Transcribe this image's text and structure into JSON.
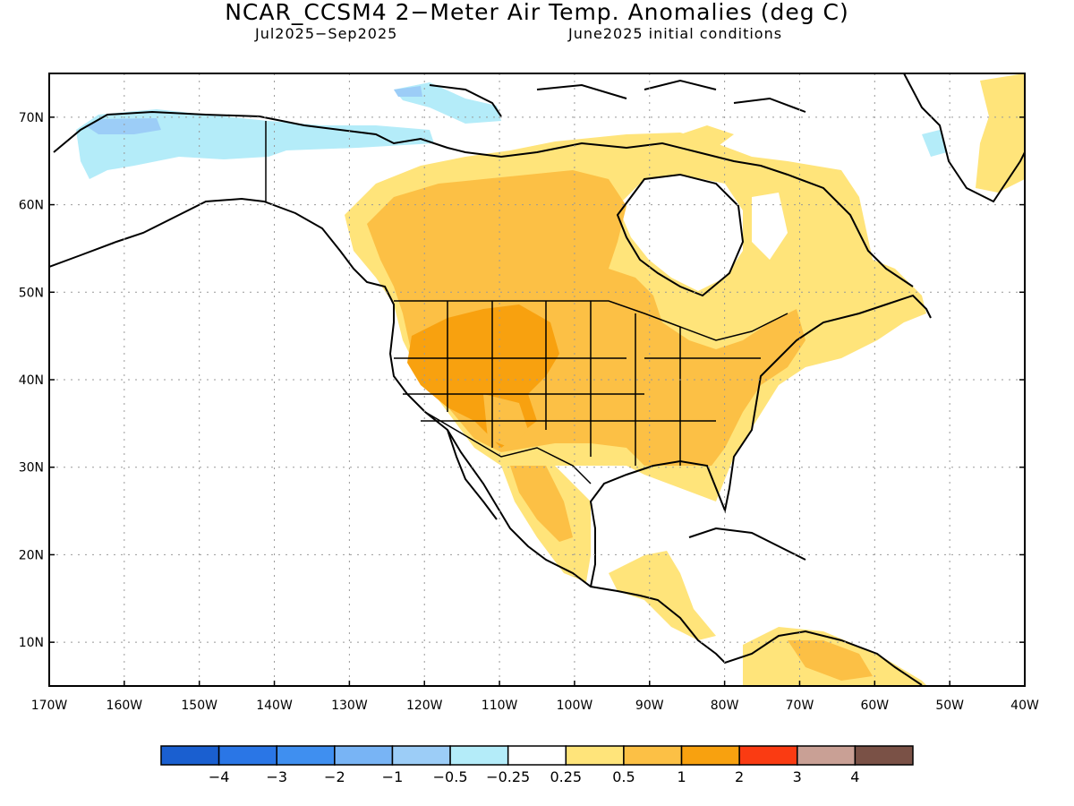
{
  "title": "NCAR_CCSM4 2−Meter Air Temp. Anomalies (deg C)",
  "period": "Jul2025−Sep2025",
  "init": "June2025 initial conditions",
  "lat_labels": [
    "70N",
    "60N",
    "50N",
    "40N",
    "30N",
    "20N",
    "10N"
  ],
  "lon_labels": [
    "170W",
    "160W",
    "150W",
    "140W",
    "130W",
    "120W",
    "110W",
    "100W",
    "90W",
    "80W",
    "70W",
    "60W",
    "50W",
    "40W"
  ],
  "colorbar": {
    "colors": [
      "#1a5fd0",
      "#2a76e6",
      "#3f8ff0",
      "#78b4f5",
      "#9ccdf7",
      "#b4ecf9",
      "#ffffff",
      "#ffe47a",
      "#fcc045",
      "#f8a10f",
      "#fa3b12",
      "#c9a095",
      "#7a5146"
    ],
    "labels": [
      "−4",
      "−3",
      "−2",
      "−1",
      "−0.5",
      "−0.25",
      "0.25",
      "0.5",
      "1",
      "2",
      "3",
      "4"
    ]
  },
  "map_data": {
    "type": "anomaly_map",
    "lon_range": [
      -170,
      -40
    ],
    "lat_range": [
      5,
      75
    ],
    "units": "deg C",
    "regions": [
      {
        "region": "Western US / Great Basin / Southwest",
        "category": "1 to 2"
      },
      {
        "region": "Central & Southern US, Southeast",
        "category": "0.5 to 1"
      },
      {
        "region": "Western & Central Canada",
        "category": "0.5 to 1"
      },
      {
        "region": "Northwest Canada / Hudson Bay periphery",
        "category": "0.25 to 0.5"
      },
      {
        "region": "Northern Mexico / Sierra Madre",
        "category": "0.5 to 1"
      },
      {
        "region": "Northern South America (Venezuela)",
        "category": "0.5 to 1"
      },
      {
        "region": "Central America / Yucatan",
        "category": "0.25 to 0.5"
      },
      {
        "region": "Northern Alaska coast",
        "category": "-0.5 to -0.25"
      },
      {
        "region": "Southeast Greenland",
        "category": "0.25 to 0.5"
      }
    ]
  }
}
